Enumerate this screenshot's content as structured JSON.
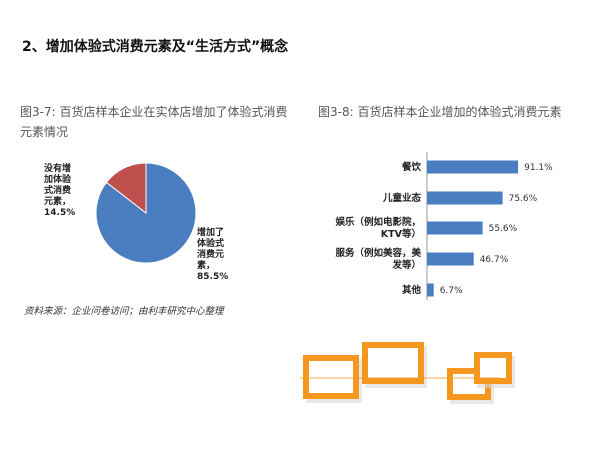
{
  "heading": "2、增加体验式消费元素及“生活方式”概念",
  "source_note": "资料来源：企业问卷访问；由利丰研究中心整理",
  "colors": {
    "blue": "#4a7ec1",
    "red": "#c0504d",
    "orange": "#f5961e"
  },
  "chart_data": [
    {
      "type": "pie",
      "title": "图3-7:    百货店样本企业在实体店增加了体验式消费元素情况",
      "series": [
        {
          "values": [
            85.5,
            14.5
          ],
          "labels": [
            [
              "增加了",
              "体验式",
              "消费元",
              "素，",
              "85.5%"
            ],
            [
              "没有增",
              "加体验",
              "式消费",
              "元素，",
              "14.5%"
            ]
          ],
          "colors": [
            "#4a7ec1",
            "#c0504d"
          ]
        }
      ]
    },
    {
      "type": "bar",
      "orientation": "horizontal",
      "title": "图3-8: 百货店样本企业增加的体验式消费元素",
      "categories": [
        [
          "餐饮"
        ],
        [
          "儿童业态"
        ],
        [
          "娱乐（例如电影院，",
          "KTV等）"
        ],
        [
          "服务（例如美容，美",
          "发等）"
        ],
        [
          "其他"
        ]
      ],
      "values": [
        91.1,
        75.6,
        55.6,
        46.7,
        6.7
      ],
      "value_labels": [
        "91.1%",
        "75.6%",
        "55.6%",
        "46.7%",
        "6.7%"
      ],
      "xlim": [
        0,
        100
      ],
      "color": "#4a7ec1"
    }
  ]
}
